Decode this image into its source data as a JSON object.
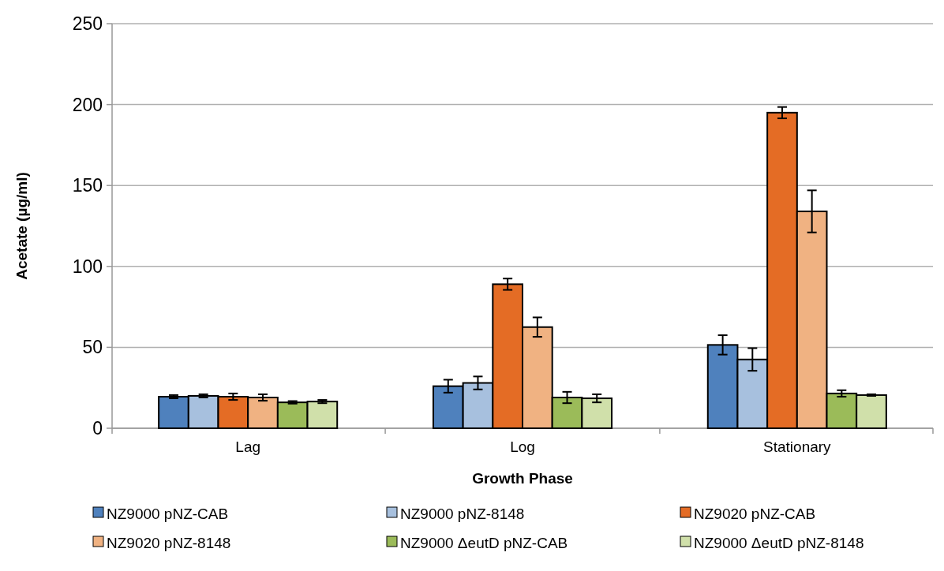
{
  "chart_data": {
    "type": "bar",
    "xlabel": "Growth Phase",
    "ylabel": "Acetate (µg/ml)",
    "categories": [
      "Lag",
      "Log",
      "Stationary"
    ],
    "ylim": [
      0,
      250
    ],
    "yticks": [
      0,
      50,
      100,
      150,
      200,
      250
    ],
    "grid": "y",
    "legend": "bottom",
    "series": [
      {
        "name": "NZ9000 pNZ-CAB",
        "color": "#4f81bd",
        "values": [
          19.5,
          26,
          51.5
        ],
        "errors": [
          1,
          4,
          6
        ]
      },
      {
        "name": "NZ9000 pNZ-8148",
        "color": "#a7c0de",
        "values": [
          20,
          28,
          42.5
        ],
        "errors": [
          1,
          4,
          7
        ]
      },
      {
        "name": "NZ9020 pNZ-CAB",
        "color": "#e46c25",
        "values": [
          19.5,
          89,
          195
        ],
        "errors": [
          2,
          3.5,
          3.5
        ]
      },
      {
        "name": "NZ9020 pNZ-8148",
        "color": "#f0b282",
        "values": [
          19,
          62.5,
          134
        ],
        "errors": [
          2,
          6,
          13
        ]
      },
      {
        "name": "NZ9000 ΔeutD pNZ-CAB",
        "color": "#9bbb59",
        "values": [
          16,
          19,
          21.5
        ],
        "errors": [
          0.8,
          3.5,
          2
        ]
      },
      {
        "name": "NZ9000 ΔeutD pNZ-8148",
        "color": "#d0e0aa",
        "values": [
          16.5,
          18.5,
          20.5
        ],
        "errors": [
          1,
          2.5,
          0.5
        ]
      }
    ]
  }
}
